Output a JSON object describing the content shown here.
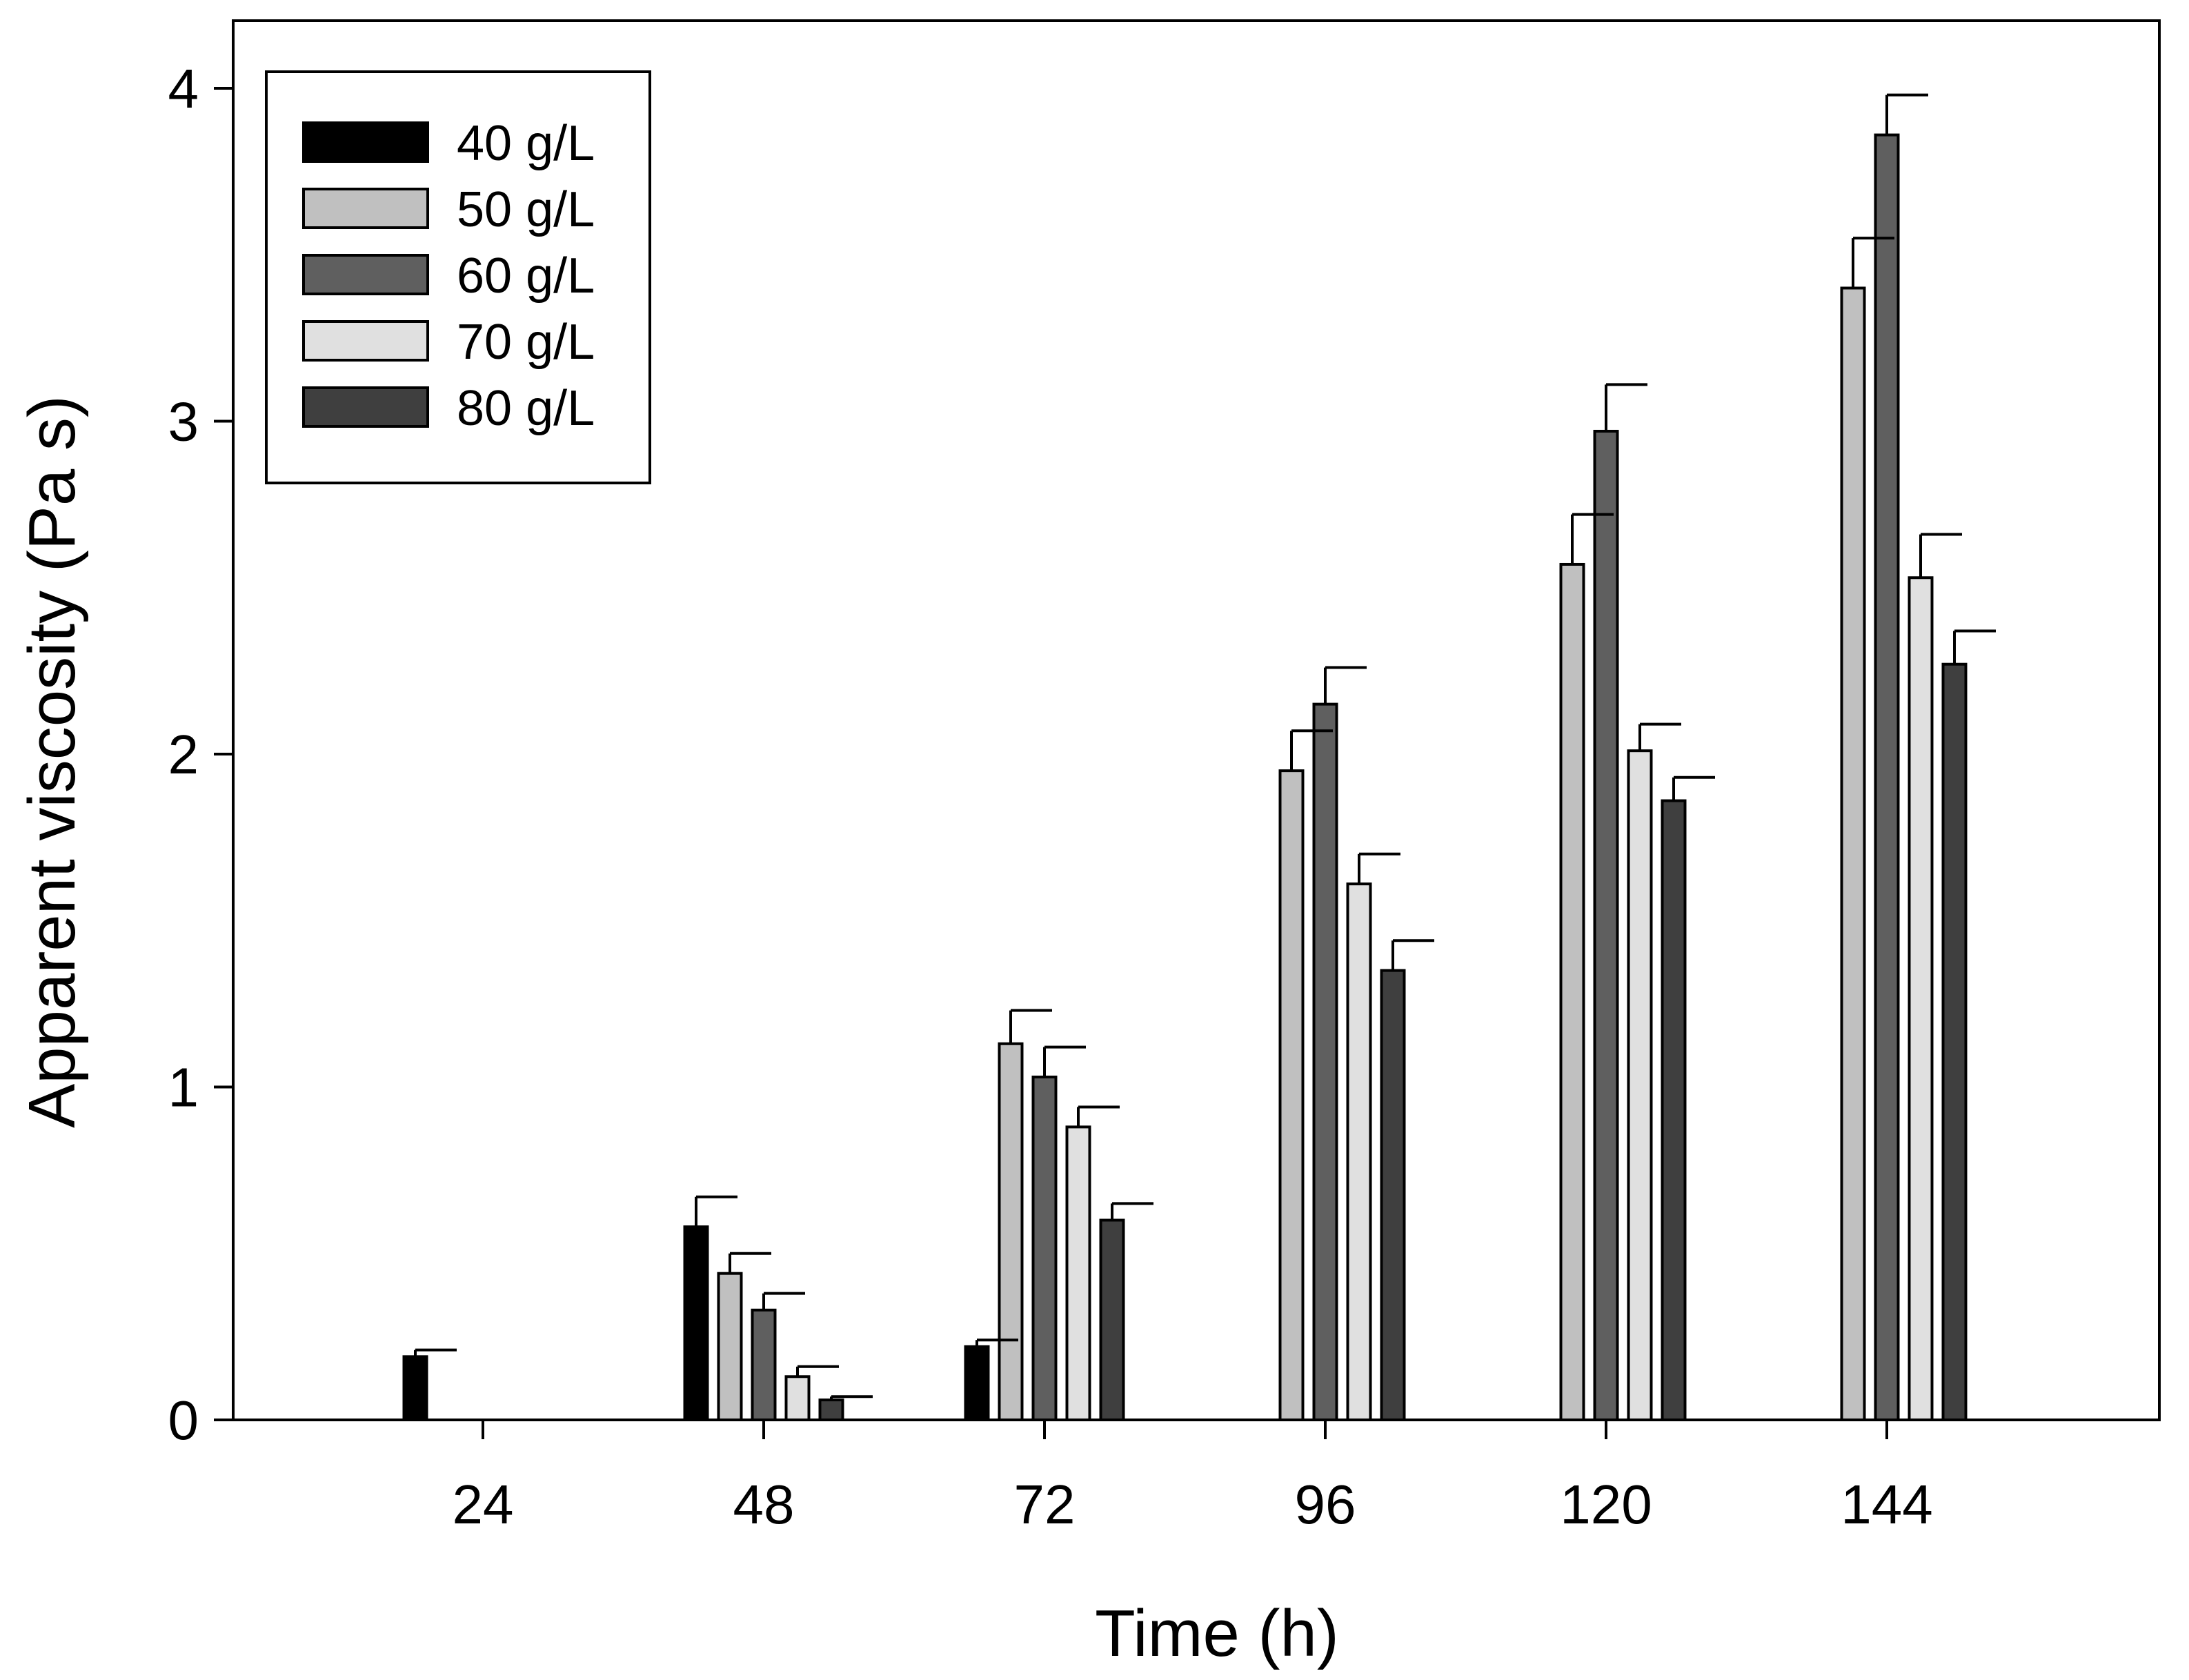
{
  "chart_data": {
    "type": "bar",
    "title": "",
    "xlabel": "Time (h)",
    "ylabel": "Apparent viscosity (Pa s)",
    "categories": [
      "24",
      "48",
      "72",
      "96",
      "120",
      "144"
    ],
    "ylim": [
      0,
      4.2
    ],
    "yticks": [
      0,
      1,
      2,
      3,
      4
    ],
    "grid": false,
    "legend_position": "top-left",
    "series": [
      {
        "name": "40 g/L",
        "color": "#000000",
        "values": [
          0.19,
          0.58,
          0.22,
          null,
          null,
          null
        ],
        "errors": [
          0.02,
          0.09,
          0.02,
          null,
          null,
          null
        ]
      },
      {
        "name": "50 g/L",
        "color": "#c0c0c0",
        "values": [
          null,
          0.44,
          1.13,
          1.95,
          2.57,
          3.4
        ],
        "errors": [
          null,
          0.06,
          0.1,
          0.12,
          0.15,
          0.15
        ]
      },
      {
        "name": "60 g/L",
        "color": "#5f5f5f",
        "values": [
          null,
          0.33,
          1.03,
          2.15,
          2.97,
          3.86
        ],
        "errors": [
          null,
          0.05,
          0.09,
          0.11,
          0.14,
          0.12
        ]
      },
      {
        "name": "70 g/L",
        "color": "#e0e0e0",
        "values": [
          null,
          0.13,
          0.88,
          1.61,
          2.01,
          2.53
        ],
        "errors": [
          null,
          0.03,
          0.06,
          0.09,
          0.08,
          0.13
        ]
      },
      {
        "name": "80 g/L",
        "color": "#3f3f3f",
        "values": [
          null,
          0.06,
          0.6,
          1.35,
          1.86,
          2.27
        ],
        "errors": [
          null,
          0.01,
          0.05,
          0.09,
          0.07,
          0.1
        ]
      }
    ]
  }
}
